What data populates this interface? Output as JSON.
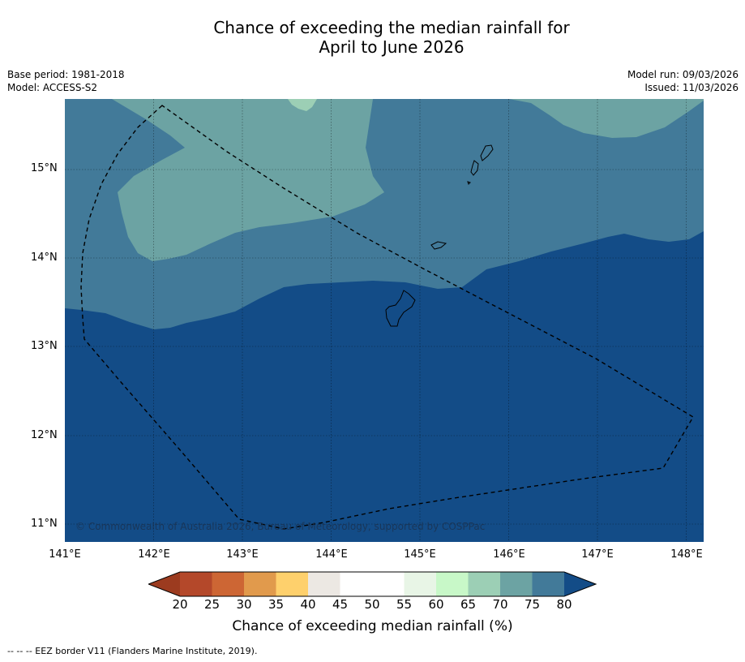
{
  "title_line1": "Chance of exceeding the median rainfall for",
  "title_line2": "April to June 2026",
  "meta_left": {
    "base_period": "Base period: 1981-2018",
    "model": "Model: ACCESS-S2"
  },
  "meta_right": {
    "model_run": "Model run: 09/03/2026",
    "issued": "Issued: 11/03/2026"
  },
  "latitude_labels": [
    "15°N",
    "14°N",
    "13°N",
    "12°N",
    "11°N"
  ],
  "longitude_labels": [
    "141°E",
    "142°E",
    "143°E",
    "144°E",
    "145°E",
    "146°E",
    "147°E",
    "148°E"
  ],
  "copyright": "© Commonwealth of Australia 2026, Bureau of Meteorology, supported by COSPPac",
  "colorbar": {
    "ticks": [
      "20",
      "25",
      "30",
      "35",
      "40",
      "45",
      "50",
      "55",
      "60",
      "65",
      "70",
      "75",
      "80"
    ],
    "colors": [
      "#9c3b1f",
      "#b4482a",
      "#cd6634",
      "#e19a4c",
      "#fed06c",
      "#ece8e3",
      "#ffffff",
      "#ffffff",
      "#e8f5e6",
      "#c8f8c8",
      "#9ccfb5",
      "#6ca3a3",
      "#427a99",
      "#134c87"
    ],
    "label": "Chance of exceeding median rainfall (%)"
  },
  "legend_footnote": "--  --  -- EEZ border V11 (Flanders Marine Institute, 2019).",
  "map_colors": {
    "c70_75": "#6ca3a3",
    "c75_80": "#427a99",
    "c80_plus": "#134c87",
    "c65_70": "#9ccfb5"
  }
}
